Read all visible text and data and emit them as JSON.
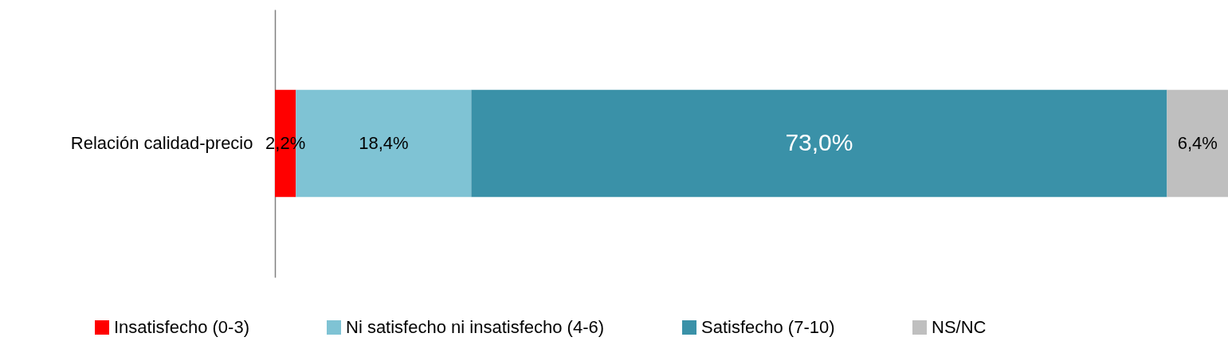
{
  "chart_data": {
    "type": "bar",
    "orientation": "horizontal",
    "stacked": true,
    "categories": [
      "Relación calidad-precio"
    ],
    "series": [
      {
        "name": "Insatisfecho (0-3)",
        "color": "#ff0000",
        "values": [
          2.2
        ],
        "value_labels": [
          "2,2%"
        ]
      },
      {
        "name": "Ni satisfecho ni insatisfecho (4-6)",
        "color": "#7fc3d4",
        "values": [
          18.4
        ],
        "value_labels": [
          "18,4%"
        ]
      },
      {
        "name": "Satisfecho (7-10)",
        "color": "#3a91a8",
        "values": [
          73.0
        ],
        "value_labels": [
          "73,0%"
        ]
      },
      {
        "name": "NS/NC",
        "color": "#bfbfbf",
        "values": [
          6.4
        ],
        "value_labels": [
          "6,4%"
        ]
      }
    ],
    "xlim": [
      0,
      100
    ],
    "tick_labels": "y",
    "legend": "bottom"
  }
}
